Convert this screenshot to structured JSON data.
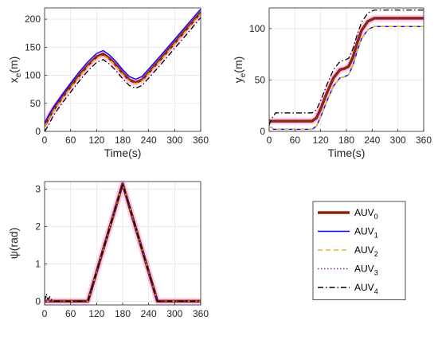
{
  "chart_data": [
    {
      "type": "line",
      "xlabel": "Time(s)",
      "ylabel": "x",
      "ylabel_sub": "e",
      "ylabel_unit": "(m)",
      "xlim": [
        0,
        360
      ],
      "ylim": [
        0,
        220
      ],
      "xticks": [
        0,
        60,
        120,
        180,
        240,
        300,
        360
      ],
      "yticks": [
        0,
        50,
        100,
        150,
        200
      ],
      "grid": true,
      "series": [
        {
          "name": "AUV0",
          "color": "#8B2500",
          "x": [
            0,
            10,
            20,
            40,
            60,
            80,
            100,
            120,
            135,
            150,
            165,
            180,
            195,
            210,
            225,
            240,
            270,
            300,
            330,
            360
          ],
          "y": [
            10,
            25,
            38,
            60,
            80,
            100,
            118,
            133,
            138,
            130,
            118,
            104,
            92,
            87,
            92,
            105,
            131,
            158,
            185,
            212
          ]
        },
        {
          "name": "AUV1",
          "color": "#0000FF",
          "x": [
            0,
            10,
            20,
            40,
            60,
            80,
            100,
            120,
            135,
            150,
            165,
            180,
            195,
            210,
            225,
            240,
            270,
            300,
            330,
            360
          ],
          "y": [
            15,
            30,
            43,
            65,
            86,
            106,
            124,
            139,
            144,
            136,
            124,
            110,
            98,
            93,
            98,
            111,
            137,
            164,
            191,
            218
          ]
        },
        {
          "name": "AUV2",
          "color": "#EDB120",
          "x": [
            0,
            10,
            20,
            40,
            60,
            80,
            100,
            120,
            135,
            150,
            165,
            180,
            195,
            210,
            225,
            240,
            270,
            300,
            330,
            360
          ],
          "y": [
            8,
            23,
            36,
            58,
            78,
            98,
            116,
            131,
            136,
            128,
            116,
            102,
            90,
            85,
            90,
            103,
            129,
            156,
            183,
            210
          ]
        },
        {
          "name": "AUV3",
          "color": "#7E2F8E",
          "x": [
            0,
            10,
            20,
            40,
            60,
            80,
            100,
            120,
            135,
            150,
            165,
            180,
            195,
            210,
            225,
            240,
            270,
            300,
            330,
            360
          ],
          "y": [
            12,
            27,
            40,
            62,
            82,
            102,
            120,
            135,
            140,
            132,
            120,
            106,
            94,
            89,
            94,
            107,
            133,
            160,
            187,
            214
          ]
        },
        {
          "name": "AUV4",
          "color": "#000000",
          "x": [
            0,
            10,
            20,
            40,
            60,
            80,
            100,
            120,
            135,
            150,
            165,
            180,
            195,
            210,
            225,
            240,
            270,
            300,
            330,
            360
          ],
          "y": [
            0,
            12,
            28,
            50,
            70,
            90,
            108,
            123,
            128,
            120,
            108,
            94,
            82,
            77,
            82,
            95,
            121,
            148,
            175,
            203
          ]
        }
      ]
    },
    {
      "type": "line",
      "xlabel": "Time(s)",
      "ylabel": "y",
      "ylabel_sub": "e",
      "ylabel_unit": "(m)",
      "xlim": [
        0,
        360
      ],
      "ylim": [
        0,
        120
      ],
      "xticks": [
        0,
        60,
        120,
        180,
        240,
        300,
        360
      ],
      "yticks": [
        0,
        50,
        100
      ],
      "grid": true,
      "series": [
        {
          "name": "AUV0",
          "color": "#8B2500",
          "x": [
            0,
            100,
            110,
            120,
            135,
            150,
            165,
            175,
            185,
            195,
            205,
            215,
            230,
            245,
            260,
            360
          ],
          "y": [
            10,
            10,
            13,
            22,
            38,
            52,
            60,
            61,
            63,
            72,
            86,
            98,
            107,
            110,
            110,
            110
          ]
        },
        {
          "name": "AUV1",
          "color": "#0000FF",
          "x": [
            0,
            5,
            10,
            100,
            110,
            120,
            135,
            150,
            165,
            175,
            185,
            195,
            205,
            215,
            230,
            245,
            260,
            360
          ],
          "y": [
            4,
            4,
            2,
            2,
            5,
            14,
            30,
            44,
            52,
            53,
            55,
            64,
            78,
            90,
            99,
            102,
            102,
            102
          ]
        },
        {
          "name": "AUV2",
          "color": "#EDB120",
          "x": [
            0,
            5,
            10,
            100,
            110,
            120,
            135,
            150,
            165,
            175,
            185,
            195,
            205,
            215,
            230,
            245,
            260,
            360
          ],
          "y": [
            4,
            4,
            2,
            2,
            5,
            14,
            30,
            44,
            52,
            53,
            55,
            64,
            78,
            90,
            99,
            102,
            102,
            102
          ]
        },
        {
          "name": "AUV3",
          "color": "#7E2F8E",
          "x": [
            0,
            100,
            110,
            120,
            135,
            150,
            165,
            175,
            185,
            195,
            205,
            215,
            230,
            245,
            260,
            360
          ],
          "y": [
            10,
            10,
            13,
            22,
            38,
            52,
            60,
            61,
            63,
            72,
            86,
            98,
            107,
            110,
            110,
            110
          ]
        },
        {
          "name": "AUV4",
          "color": "#000000",
          "x": [
            0,
            5,
            15,
            100,
            110,
            120,
            135,
            150,
            165,
            175,
            185,
            195,
            205,
            215,
            230,
            245,
            260,
            360
          ],
          "y": [
            6,
            12,
            18,
            18,
            21,
            30,
            46,
            60,
            68,
            69,
            71,
            80,
            94,
            106,
            115,
            118,
            118,
            118
          ]
        }
      ]
    },
    {
      "type": "line",
      "xlabel": "",
      "ylabel": "ψ(rad)",
      "xlim": [
        0,
        360
      ],
      "ylim": [
        -0.1,
        3.2
      ],
      "xticks": [
        0,
        60,
        120,
        180,
        240,
        300,
        360
      ],
      "yticks": [
        0,
        1,
        2,
        3
      ],
      "grid": true,
      "series": [
        {
          "name": "AUV0",
          "color": "#8B2500",
          "x": [
            0,
            100,
            180,
            260,
            360
          ],
          "y": [
            0,
            0,
            3.14,
            0,
            0
          ]
        },
        {
          "name": "AUV1",
          "color": "#0000FF",
          "x": [
            0,
            100,
            180,
            260,
            360
          ],
          "y": [
            0,
            0,
            3.14,
            0,
            0
          ]
        },
        {
          "name": "AUV2",
          "color": "#EDB120",
          "x": [
            0,
            100,
            180,
            260,
            360
          ],
          "y": [
            0,
            0,
            3.14,
            0,
            0
          ]
        },
        {
          "name": "AUV3",
          "color": "#7E2F8E",
          "x": [
            0,
            3,
            6,
            10,
            15,
            100,
            180,
            260,
            360
          ],
          "y": [
            0,
            0.15,
            0.05,
            0.1,
            0,
            0,
            3.14,
            0,
            0
          ]
        },
        {
          "name": "AUV4",
          "color": "#000000",
          "x": [
            0,
            4,
            8,
            12,
            18,
            100,
            180,
            260,
            360
          ],
          "y": [
            0,
            0.2,
            0.05,
            0.12,
            0,
            0,
            3.14,
            0,
            0
          ]
        }
      ]
    }
  ],
  "legend": {
    "entries": [
      {
        "base": "AUV",
        "sub": "0",
        "color": "#8B2500",
        "style": "solid-thick"
      },
      {
        "base": "AUV",
        "sub": "1",
        "color": "#0000FF",
        "style": "solid"
      },
      {
        "base": "AUV",
        "sub": "2",
        "color": "#EDB120",
        "style": "dashed"
      },
      {
        "base": "AUV",
        "sub": "3",
        "color": "#7E2F8E",
        "style": "dotted"
      },
      {
        "base": "AUV",
        "sub": "4",
        "color": "#000000",
        "style": "dashdot"
      }
    ]
  }
}
